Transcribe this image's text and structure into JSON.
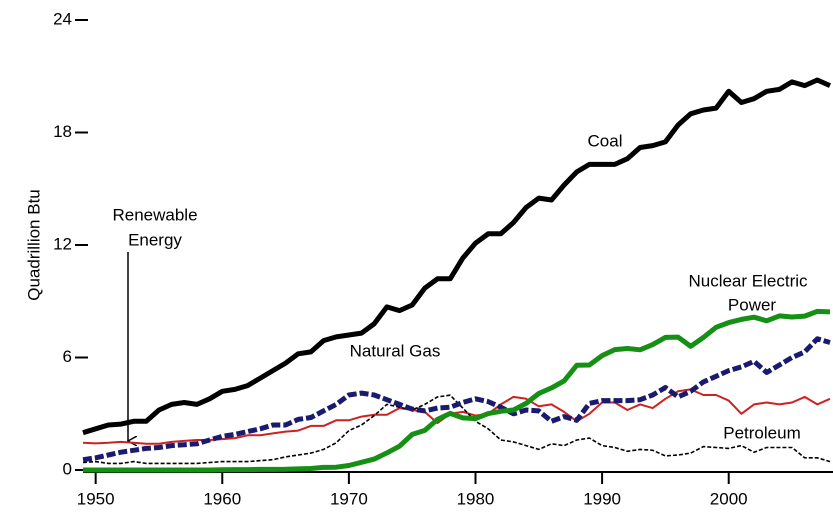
{
  "chart_data": {
    "type": "line",
    "y_label": "Quadrillion Btu",
    "xlim": [
      1949,
      2008
    ],
    "ylim": [
      0,
      24
    ],
    "xticks": [
      1950,
      1960,
      1970,
      1980,
      1990,
      2000
    ],
    "yticks": [
      0,
      6,
      12,
      18,
      24
    ],
    "annotations": [
      "Coal",
      "Nuclear Electric",
      "Power",
      "Renewable",
      "Energy",
      "Natural Gas",
      "Petroleum"
    ],
    "x": [
      1949,
      1950,
      1951,
      1952,
      1953,
      1954,
      1955,
      1956,
      1957,
      1958,
      1959,
      1960,
      1961,
      1962,
      1963,
      1964,
      1965,
      1966,
      1967,
      1968,
      1969,
      1970,
      1971,
      1972,
      1973,
      1974,
      1975,
      1976,
      1977,
      1978,
      1979,
      1980,
      1981,
      1982,
      1983,
      1984,
      1985,
      1986,
      1987,
      1988,
      1989,
      1990,
      1991,
      1992,
      1993,
      1994,
      1995,
      1996,
      1997,
      1998,
      1999,
      2000,
      2001,
      2002,
      2003,
      2004,
      2005,
      2006,
      2007,
      2008
    ],
    "series": [
      {
        "name": "Coal",
        "color": "#000000",
        "values": [
          1.99,
          2.2,
          2.4,
          2.45,
          2.6,
          2.6,
          3.2,
          3.5,
          3.6,
          3.5,
          3.8,
          4.2,
          4.3,
          4.5,
          4.9,
          5.3,
          5.7,
          6.2,
          6.3,
          6.9,
          7.1,
          7.2,
          7.3,
          7.8,
          8.7,
          8.5,
          8.8,
          9.7,
          10.2,
          10.2,
          11.3,
          12.1,
          12.6,
          12.6,
          13.2,
          14.0,
          14.5,
          14.4,
          15.2,
          15.9,
          16.3,
          16.3,
          16.3,
          16.6,
          17.2,
          17.3,
          17.5,
          18.4,
          19.0,
          19.2,
          19.3,
          20.2,
          19.6,
          19.8,
          20.2,
          20.3,
          20.7,
          20.5,
          20.8,
          20.5
        ]
      },
      {
        "name": "Nuclear Electric Power",
        "color": "#159015",
        "values": [
          0,
          0,
          0,
          0,
          0,
          0,
          0,
          0,
          0,
          0,
          0,
          0.01,
          0.02,
          0.02,
          0.03,
          0.03,
          0.04,
          0.06,
          0.08,
          0.14,
          0.15,
          0.24,
          0.41,
          0.58,
          0.91,
          1.27,
          1.9,
          2.11,
          2.7,
          3.02,
          2.78,
          2.74,
          3.01,
          3.13,
          3.2,
          3.55,
          4.08,
          4.38,
          4.75,
          5.59,
          5.6,
          6.1,
          6.42,
          6.48,
          6.41,
          6.69,
          7.07,
          7.09,
          6.6,
          7.07,
          7.61,
          7.86,
          8.03,
          8.15,
          7.96,
          8.22,
          8.16,
          8.21,
          8.46,
          8.43
        ]
      },
      {
        "name": "Natural Gas",
        "color": "#1a1a6e",
        "values": [
          0.55,
          0.65,
          0.8,
          0.95,
          1.05,
          1.15,
          1.2,
          1.3,
          1.35,
          1.4,
          1.6,
          1.8,
          1.9,
          2.05,
          2.2,
          2.4,
          2.4,
          2.7,
          2.8,
          3.15,
          3.5,
          4.0,
          4.1,
          4.0,
          3.75,
          3.5,
          3.25,
          3.15,
          3.3,
          3.35,
          3.6,
          3.8,
          3.65,
          3.35,
          3.0,
          3.2,
          3.15,
          2.6,
          2.85,
          2.65,
          3.55,
          3.7,
          3.7,
          3.7,
          3.75,
          4.0,
          4.4,
          3.9,
          4.2,
          4.7,
          5.0,
          5.3,
          5.5,
          5.8,
          5.2,
          5.6,
          6.0,
          6.3,
          7.0,
          6.8
        ]
      },
      {
        "name": "Renewable Energy",
        "color": "#cc2222",
        "values": [
          1.45,
          1.42,
          1.45,
          1.5,
          1.45,
          1.4,
          1.4,
          1.5,
          1.55,
          1.6,
          1.6,
          1.65,
          1.7,
          1.85,
          1.85,
          1.95,
          2.05,
          2.1,
          2.35,
          2.35,
          2.65,
          2.65,
          2.85,
          2.95,
          2.95,
          3.3,
          3.2,
          3.1,
          2.5,
          3.0,
          3.1,
          2.9,
          3.0,
          3.5,
          3.9,
          3.8,
          3.4,
          3.5,
          3.1,
          2.6,
          3.0,
          3.6,
          3.6,
          3.2,
          3.5,
          3.3,
          3.8,
          4.2,
          4.3,
          4.0,
          4.0,
          3.7,
          3.0,
          3.5,
          3.6,
          3.5,
          3.6,
          3.9,
          3.5,
          3.8
        ]
      },
      {
        "name": "Petroleum",
        "color": "#000000",
        "values": [
          0.4,
          0.45,
          0.35,
          0.35,
          0.45,
          0.35,
          0.35,
          0.35,
          0.35,
          0.35,
          0.4,
          0.45,
          0.45,
          0.45,
          0.5,
          0.55,
          0.7,
          0.8,
          0.9,
          1.1,
          1.45,
          2.1,
          2.4,
          2.9,
          3.5,
          3.35,
          3.2,
          3.5,
          3.9,
          3.99,
          3.3,
          2.6,
          2.2,
          1.6,
          1.5,
          1.3,
          1.1,
          1.4,
          1.3,
          1.6,
          1.7,
          1.3,
          1.2,
          1.0,
          1.1,
          1.05,
          0.75,
          0.8,
          0.9,
          1.25,
          1.2,
          1.15,
          1.3,
          0.95,
          1.2,
          1.2,
          1.2,
          0.65,
          0.65,
          0.45
        ]
      }
    ]
  }
}
